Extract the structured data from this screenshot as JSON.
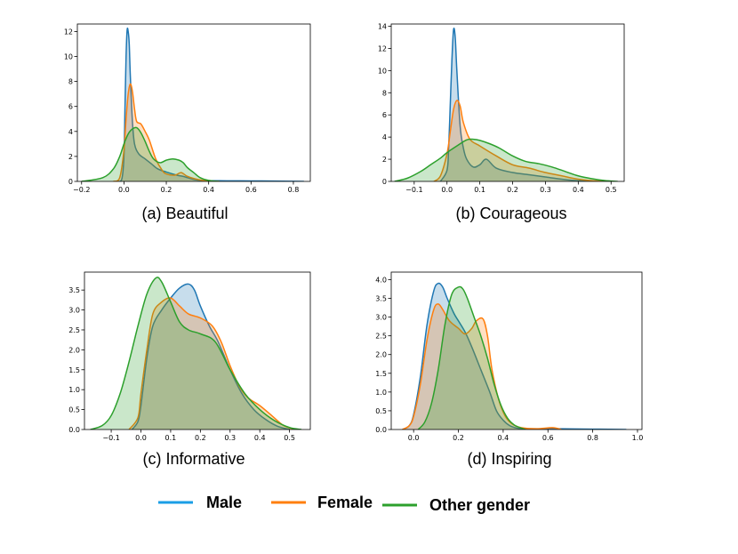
{
  "colors": {
    "male": "#1f77b4",
    "female": "#ff7f0e",
    "other": "#2ca02c",
    "legend_male": "#1a9ee6"
  },
  "legend": [
    {
      "key": "male",
      "label": "Male"
    },
    {
      "key": "female",
      "label": "Female"
    },
    {
      "key": "other",
      "label": "Other gender"
    }
  ],
  "chart_data": [
    {
      "type": "area",
      "title": "(a) Beautiful",
      "xlim": [
        -0.22,
        0.88
      ],
      "ylim": [
        0,
        12.6
      ],
      "xticks": [
        -0.2,
        0.0,
        0.2,
        0.4,
        0.6,
        0.8
      ],
      "xtick_labels": [
        "−0.2",
        "0.0",
        "0.2",
        "0.4",
        "0.6",
        "0.8"
      ],
      "yticks": [
        0,
        2,
        4,
        6,
        8,
        10,
        12
      ],
      "ytick_labels": [
        "0",
        "2",
        "4",
        "6",
        "8",
        "10",
        "12"
      ],
      "series": [
        {
          "name": "Male",
          "key": "male",
          "x": [
            -0.03,
            -0.01,
            0.0,
            0.005,
            0.01,
            0.015,
            0.02,
            0.025,
            0.03,
            0.04,
            0.05,
            0.07,
            0.1,
            0.13,
            0.16,
            0.2,
            0.25,
            0.28,
            0.3,
            0.35,
            0.45,
            0.6,
            0.75,
            0.85
          ],
          "y": [
            0,
            0.2,
            2.0,
            6.0,
            10.0,
            12.1,
            12.0,
            11.0,
            8.5,
            4.8,
            3.0,
            2.2,
            1.8,
            1.4,
            1.0,
            0.75,
            0.5,
            0.4,
            0.3,
            0.1,
            0.05,
            0.04,
            0.02,
            0.0
          ]
        },
        {
          "name": "Female",
          "key": "female",
          "x": [
            -0.05,
            -0.02,
            0.0,
            0.01,
            0.02,
            0.03,
            0.04,
            0.05,
            0.06,
            0.08,
            0.1,
            0.12,
            0.15,
            0.18,
            0.2,
            0.24,
            0.27,
            0.3,
            0.35,
            0.4,
            0.45
          ],
          "y": [
            0,
            0.3,
            2.5,
            5.0,
            7.0,
            7.8,
            7.2,
            5.8,
            4.8,
            4.6,
            4.0,
            3.3,
            1.8,
            0.9,
            0.6,
            0.5,
            0.7,
            0.4,
            0.15,
            0.03,
            0.0
          ]
        },
        {
          "name": "Other gender",
          "key": "other",
          "x": [
            -0.2,
            -0.1,
            -0.05,
            -0.02,
            0.0,
            0.02,
            0.04,
            0.06,
            0.08,
            0.1,
            0.12,
            0.14,
            0.17,
            0.2,
            0.23,
            0.26,
            0.28,
            0.3,
            0.33,
            0.36,
            0.4,
            0.45
          ],
          "y": [
            0,
            0.3,
            1.0,
            2.0,
            3.0,
            3.8,
            4.2,
            4.3,
            3.9,
            3.2,
            2.4,
            1.8,
            1.5,
            1.7,
            1.8,
            1.7,
            1.5,
            1.1,
            0.7,
            0.3,
            0.08,
            0.0
          ]
        }
      ]
    },
    {
      "type": "area",
      "title": "(b) Courageous",
      "xlim": [
        -0.17,
        0.54
      ],
      "ylim": [
        0,
        14.2
      ],
      "xticks": [
        -0.1,
        0.0,
        0.1,
        0.2,
        0.3,
        0.4,
        0.5
      ],
      "xtick_labels": [
        "−0.1",
        "0.0",
        "0.1",
        "0.2",
        "0.3",
        "0.4",
        "0.5"
      ],
      "yticks": [
        0,
        2,
        4,
        6,
        8,
        10,
        12,
        14
      ],
      "ytick_labels": [
        "0",
        "2",
        "4",
        "6",
        "8",
        "10",
        "12",
        "14"
      ],
      "series": [
        {
          "name": "Male",
          "key": "male",
          "x": [
            -0.02,
            0.0,
            0.005,
            0.01,
            0.015,
            0.02,
            0.025,
            0.03,
            0.04,
            0.05,
            0.06,
            0.08,
            0.1,
            0.12,
            0.15,
            0.2,
            0.25,
            0.3,
            0.35,
            0.4,
            0.45
          ],
          "y": [
            0,
            1.0,
            3.0,
            7.0,
            11.0,
            13.7,
            13.0,
            10.0,
            5.0,
            3.0,
            2.0,
            1.3,
            1.5,
            2.0,
            1.2,
            0.8,
            0.6,
            0.4,
            0.2,
            0.06,
            0.0
          ]
        },
        {
          "name": "Female",
          "key": "female",
          "x": [
            -0.04,
            -0.02,
            0.0,
            0.01,
            0.02,
            0.03,
            0.04,
            0.05,
            0.07,
            0.1,
            0.15,
            0.2,
            0.25,
            0.3,
            0.35,
            0.4,
            0.45,
            0.5
          ],
          "y": [
            0,
            0.5,
            2.5,
            4.5,
            6.5,
            7.3,
            6.8,
            5.3,
            3.8,
            3.2,
            2.3,
            1.5,
            1.2,
            0.8,
            0.5,
            0.2,
            0.05,
            0.0
          ]
        },
        {
          "name": "Other gender",
          "key": "other",
          "x": [
            -0.16,
            -0.12,
            -0.08,
            -0.05,
            -0.02,
            0.0,
            0.03,
            0.06,
            0.08,
            0.1,
            0.13,
            0.16,
            0.2,
            0.24,
            0.28,
            0.32,
            0.36,
            0.4,
            0.44,
            0.48,
            0.52
          ],
          "y": [
            0,
            0.3,
            0.9,
            1.5,
            2.1,
            2.6,
            3.2,
            3.75,
            3.8,
            3.7,
            3.4,
            3.0,
            2.3,
            1.8,
            1.6,
            1.3,
            0.9,
            0.5,
            0.25,
            0.08,
            0.0
          ]
        }
      ]
    },
    {
      "type": "area",
      "title": "(c) Informative",
      "xlim": [
        -0.19,
        0.57
      ],
      "ylim": [
        0,
        3.95
      ],
      "xticks": [
        -0.1,
        0.0,
        0.1,
        0.2,
        0.3,
        0.4,
        0.5
      ],
      "xtick_labels": [
        "−0.1",
        "0.0",
        "0.1",
        "0.2",
        "0.3",
        "0.4",
        "0.5"
      ],
      "yticks": [
        0,
        0.5,
        1.0,
        1.5,
        2.0,
        2.5,
        3.0,
        3.5
      ],
      "ytick_labels": [
        "0.0",
        "0.5",
        "1.0",
        "1.5",
        "2.0",
        "2.5",
        "3.0",
        "3.5"
      ],
      "series": [
        {
          "name": "Male",
          "key": "male",
          "x": [
            -0.03,
            -0.01,
            0.0,
            0.02,
            0.04,
            0.07,
            0.1,
            0.13,
            0.16,
            0.18,
            0.2,
            0.23,
            0.26,
            0.3,
            0.34,
            0.38,
            0.42,
            0.46,
            0.5
          ],
          "y": [
            0,
            0.2,
            0.6,
            1.8,
            2.6,
            3.0,
            3.3,
            3.55,
            3.65,
            3.5,
            3.1,
            2.6,
            2.2,
            1.5,
            0.9,
            0.5,
            0.25,
            0.08,
            0.0
          ]
        },
        {
          "name": "Female",
          "key": "female",
          "x": [
            -0.04,
            -0.01,
            0.0,
            0.02,
            0.04,
            0.07,
            0.1,
            0.13,
            0.16,
            0.2,
            0.24,
            0.27,
            0.3,
            0.33,
            0.36,
            0.4,
            0.44,
            0.48,
            0.52
          ],
          "y": [
            0,
            0.3,
            0.9,
            2.0,
            2.9,
            3.2,
            3.3,
            3.1,
            2.9,
            2.8,
            2.6,
            2.2,
            1.6,
            1.1,
            0.8,
            0.6,
            0.35,
            0.1,
            0.0
          ]
        },
        {
          "name": "Other gender",
          "key": "other",
          "x": [
            -0.17,
            -0.13,
            -0.1,
            -0.07,
            -0.04,
            -0.01,
            0.02,
            0.05,
            0.07,
            0.1,
            0.13,
            0.16,
            0.2,
            0.25,
            0.3,
            0.35,
            0.4,
            0.45,
            0.5,
            0.54
          ],
          "y": [
            0,
            0.1,
            0.35,
            0.9,
            1.7,
            2.6,
            3.4,
            3.8,
            3.7,
            3.2,
            2.7,
            2.5,
            2.4,
            2.2,
            1.5,
            0.9,
            0.5,
            0.22,
            0.05,
            0.0
          ]
        }
      ]
    },
    {
      "type": "area",
      "title": "(d) Inspiring",
      "xlim": [
        -0.1,
        1.02
      ],
      "ylim": [
        0,
        4.2
      ],
      "xticks": [
        0.0,
        0.2,
        0.4,
        0.6,
        0.8,
        1.0
      ],
      "xtick_labels": [
        "0.0",
        "0.2",
        "0.4",
        "0.6",
        "0.8",
        "1.0"
      ],
      "yticks": [
        0,
        0.5,
        1.0,
        1.5,
        2.0,
        2.5,
        3.0,
        3.5,
        4.0
      ],
      "ytick_labels": [
        "0.0",
        "0.5",
        "1.0",
        "1.5",
        "2.0",
        "2.5",
        "3.0",
        "3.5",
        "4.0"
      ],
      "series": [
        {
          "name": "Male",
          "key": "male",
          "x": [
            -0.05,
            -0.02,
            0.0,
            0.03,
            0.06,
            0.09,
            0.11,
            0.13,
            0.15,
            0.18,
            0.2,
            0.23,
            0.26,
            0.3,
            0.34,
            0.37,
            0.4,
            0.43,
            0.46,
            0.5,
            0.6,
            0.8,
            0.95
          ],
          "y": [
            0,
            0.1,
            0.4,
            1.4,
            2.8,
            3.7,
            3.9,
            3.8,
            3.5,
            3.1,
            2.9,
            2.6,
            2.2,
            1.6,
            1.0,
            0.5,
            0.25,
            0.1,
            0.04,
            0.01,
            0.02,
            0.01,
            0.0
          ]
        },
        {
          "name": "Female",
          "key": "female",
          "x": [
            -0.05,
            -0.02,
            0.0,
            0.03,
            0.06,
            0.09,
            0.11,
            0.13,
            0.16,
            0.2,
            0.23,
            0.26,
            0.28,
            0.31,
            0.33,
            0.35,
            0.38,
            0.41,
            0.44,
            0.48,
            0.55,
            0.62,
            0.66
          ],
          "y": [
            0,
            0.1,
            0.35,
            1.2,
            2.4,
            3.2,
            3.35,
            3.2,
            2.9,
            2.7,
            2.55,
            2.7,
            2.9,
            2.95,
            2.5,
            1.6,
            0.8,
            0.35,
            0.15,
            0.05,
            0.02,
            0.05,
            0.0
          ]
        },
        {
          "name": "Other gender",
          "key": "other",
          "x": [
            0.02,
            0.05,
            0.08,
            0.11,
            0.14,
            0.17,
            0.2,
            0.22,
            0.24,
            0.27,
            0.3,
            0.33,
            0.36,
            0.39,
            0.42,
            0.45,
            0.48,
            0.5
          ],
          "y": [
            0,
            0.2,
            0.7,
            1.6,
            2.8,
            3.6,
            3.8,
            3.75,
            3.5,
            3.0,
            2.5,
            1.9,
            1.2,
            0.65,
            0.3,
            0.12,
            0.04,
            0.0
          ]
        }
      ]
    }
  ]
}
